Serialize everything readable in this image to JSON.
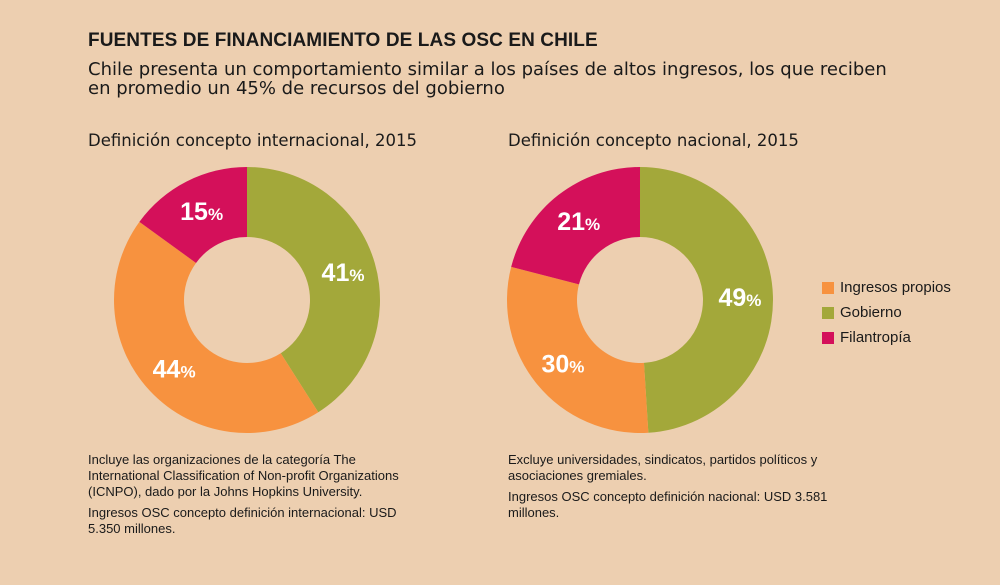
{
  "header": {
    "title": "FUENTES DE FINANCIAMIENTO DE LAS OSC EN CHILE",
    "subtitle": "Chile presenta un comportamiento similar a los países de altos ingresos, los que reciben en promedio un 45% de recursos del gobierno"
  },
  "colors": {
    "background": "#edcfb0",
    "Gobierno": "#a3a83a",
    "Ingresos propios": "#f7923f",
    "Filantropía": "#d4105a"
  },
  "legend": {
    "items": [
      {
        "label": "Ingresos propios",
        "color": "#f7923f"
      },
      {
        "label": "Gobierno",
        "color": "#a3a83a"
      },
      {
        "label": "Filantropía",
        "color": "#d4105a"
      }
    ]
  },
  "chart_data": [
    {
      "type": "pie",
      "variant": "donut",
      "title": "Definición concepto internacional, 2015",
      "slices": [
        {
          "label": "Gobierno",
          "value": 41,
          "display": "41"
        },
        {
          "label": "Ingresos propios",
          "value": 44,
          "display": "44"
        },
        {
          "label": "Filantropía",
          "value": 15,
          "display": "15"
        }
      ],
      "unit": "%",
      "notes": [
        "Incluye las organizaciones de la categoría The International Classification of Non-profit Organizations (ICNPO), dado por la Johns Hopkins University.",
        "Ingresos OSC concepto definición internacional: USD 5.350 millones."
      ]
    },
    {
      "type": "pie",
      "variant": "donut",
      "title": "Definición concepto nacional, 2015",
      "slices": [
        {
          "label": "Gobierno",
          "value": 49,
          "display": "49"
        },
        {
          "label": "Ingresos propios",
          "value": 30,
          "display": "30"
        },
        {
          "label": "Filantropía",
          "value": 21,
          "display": "21"
        }
      ],
      "unit": "%",
      "notes": [
        "Excluye universidades, sindicatos, partidos políticos y asociaciones gremiales.",
        "Ingresos OSC concepto definición nacional: USD 3.581 millones."
      ]
    }
  ]
}
